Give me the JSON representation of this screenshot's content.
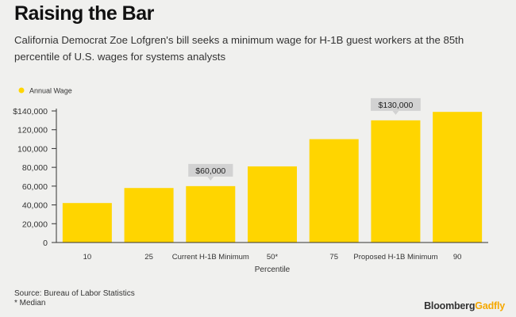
{
  "title": "Raising the Bar",
  "subtitle": "California Democrat Zoe Lofgren's bill seeks a minimum wage for H-1B guest workers at the 85th percentile of U.S. wages for systems analysts",
  "chart_data": {
    "type": "bar",
    "title": "Raising the Bar",
    "xlabel": "Percentile",
    "ylabel": "",
    "categories": [
      "10",
      "25",
      "Current H-1B Minimum",
      "50*",
      "75",
      "Proposed H-1B Minimum",
      "90"
    ],
    "series": [
      {
        "name": "Annual Wage",
        "values": [
          42000,
          58000,
          60000,
          81000,
          110000,
          130000,
          139000
        ]
      }
    ],
    "ylim": [
      0,
      140000
    ],
    "yticks": [
      0,
      20000,
      40000,
      60000,
      80000,
      100000,
      120000,
      140000
    ],
    "ytick_labels": [
      "0",
      "20,000",
      "40,000",
      "60,000",
      "80,000",
      "100,000",
      "120,000",
      "$140,000"
    ],
    "grid": false,
    "legend_position": "top-left",
    "annotations": [
      {
        "category": "Current H-1B Minimum",
        "text": "$60,000"
      },
      {
        "category": "Proposed H-1B Minimum",
        "text": "$130,000"
      }
    ],
    "colors": {
      "bar": "#ffd500",
      "axis": "#333333",
      "annotation_bg": "#d2d2d2"
    }
  },
  "footer": {
    "source": "Source: Bureau of Labor Statistics",
    "note": "* Median",
    "brand_main": "Bloomberg",
    "brand_accent": "Gadfly"
  }
}
